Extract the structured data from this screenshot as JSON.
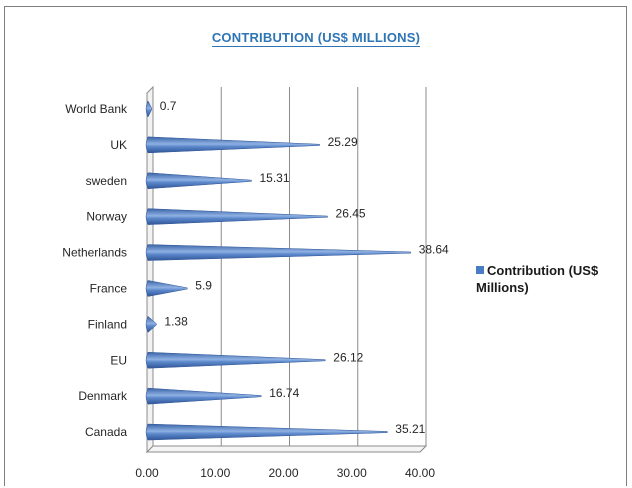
{
  "chart_data": {
    "type": "bar",
    "orientation": "horizontal",
    "title": "CONTRIBUTION (US$ MILLIONS)",
    "categories": [
      "World Bank",
      "UK",
      "sweden",
      "Norway",
      "Netherlands",
      "France",
      "Finland",
      "EU",
      "Denmark",
      "Canada"
    ],
    "series": [
      {
        "name": "Contribution (US$ Millions)",
        "values": [
          0.7,
          25.29,
          15.31,
          26.45,
          38.64,
          5.9,
          1.38,
          26.12,
          16.74,
          35.21
        ]
      }
    ],
    "data_labels": [
      "0.7",
      "25.29",
      "15.31",
      "26.45",
      "38.64",
      "5.9",
      "1.38",
      "26.12",
      "16.74",
      "35.21"
    ],
    "xlim": [
      0,
      40
    ],
    "x_ticks": [
      "0.00",
      "10.00",
      "20.00",
      "30.00",
      "40.00"
    ],
    "grid": "vertical",
    "legend_position": "right",
    "bar_color": "#4a7cc4"
  }
}
